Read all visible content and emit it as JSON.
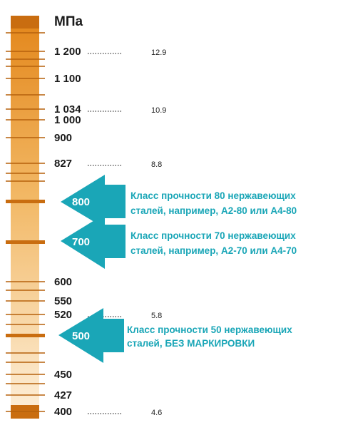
{
  "unit": "МПа",
  "scale_labels": [
    "1 200",
    "1 100",
    "1 034",
    "1 000",
    "900",
    "827",
    "600",
    "550",
    "520",
    "450",
    "427",
    "400"
  ],
  "property_classes": [
    "12.9",
    "10.9",
    "8.8",
    "5.8",
    "4.6"
  ],
  "callouts": [
    {
      "value": "800",
      "line1": "Класс прочности 80 нержавеющих",
      "line2": "сталей, например, А2-80 или А4-80"
    },
    {
      "value": "700",
      "line1": "Класс прочности 70 нержавеющих",
      "line2": "сталей, например, А2-70 или А4-70"
    },
    {
      "value": "500",
      "line1": "Класс прочности 50 нержавеющих",
      "line2": "сталей, БЕЗ МАРКИРОВКИ"
    }
  ],
  "colors": {
    "bar_top": "#e48a1e",
    "bar_bottom": "#fbe7c8",
    "band": "#c96d10",
    "arrow": "#1aa6b7"
  }
}
